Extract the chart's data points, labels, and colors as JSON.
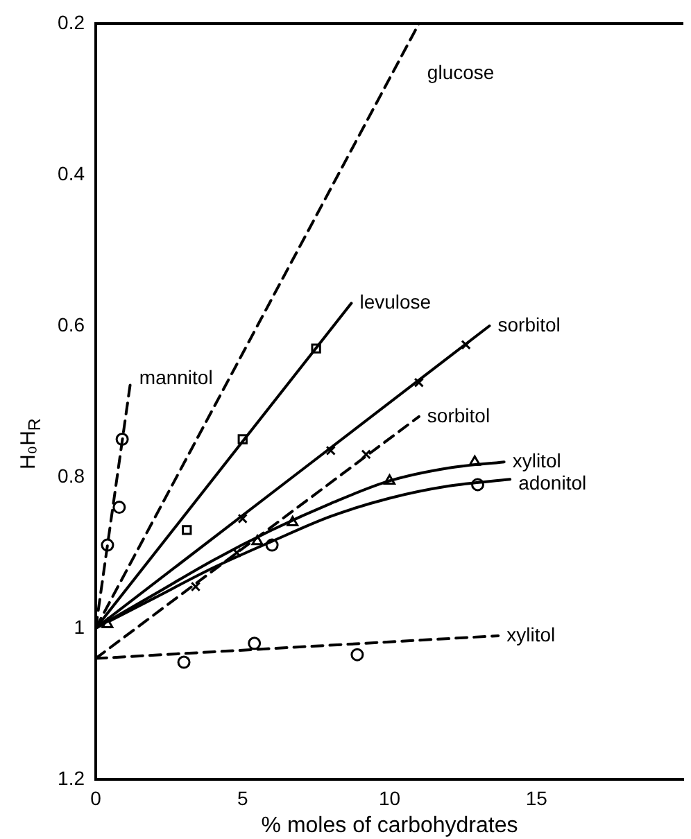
{
  "chart_data": {
    "type": "line",
    "xlabel": "% moles of carbohydrates",
    "ylabel": "H₀H$_{R}$",
    "xlim": [
      0,
      20
    ],
    "xticks": [
      0,
      5,
      10,
      15
    ],
    "ylim": [
      1.2,
      0.2
    ],
    "yticks": [
      0.2,
      0.4,
      0.6,
      0.8,
      1,
      1.2
    ],
    "grid": false,
    "legend": false,
    "series": [
      {
        "name": "glucose",
        "type": "line",
        "color": "#000000",
        "line_style": "dashed",
        "marker": "none",
        "x": [
          0,
          11
        ],
        "values": [
          1.0,
          0.2
        ]
      },
      {
        "name": "mannitol",
        "type": "line",
        "color": "#000000",
        "line_style": "dashed",
        "marker": "none",
        "x": [
          0,
          1.2
        ],
        "values": [
          1.0,
          0.67
        ]
      },
      {
        "type": "scatter",
        "color": "#000000",
        "marker": "circle",
        "x": [
          0.4,
          0.8,
          0.9
        ],
        "values": [
          0.89,
          0.84,
          0.75
        ]
      },
      {
        "name": "levulose",
        "type": "line",
        "color": "#000000",
        "line_style": "solid",
        "marker": "none",
        "x": [
          0,
          8.7
        ],
        "values": [
          1.0,
          0.57
        ]
      },
      {
        "type": "scatter",
        "color": "#000000",
        "marker": "square",
        "x": [
          3.1,
          5.0,
          7.5
        ],
        "values": [
          0.87,
          0.75,
          0.63
        ]
      },
      {
        "name": "sorbitol",
        "type": "line",
        "color": "#000000",
        "line_style": "solid",
        "marker": "none",
        "x": [
          0,
          13.4
        ],
        "values": [
          1.0,
          0.6
        ]
      },
      {
        "type": "scatter",
        "color": "#000000",
        "marker": "cross",
        "x": [
          5.0,
          8.0,
          11.0,
          12.6
        ],
        "values": [
          0.855,
          0.765,
          0.675,
          0.625
        ]
      },
      {
        "name": "sorbitol",
        "type": "line",
        "color": "#000000",
        "line_style": "dashed",
        "marker": "none",
        "x": [
          0,
          11
        ],
        "values": [
          1.04,
          0.72
        ]
      },
      {
        "type": "scatter",
        "color": "#000000",
        "marker": "cross",
        "x": [
          3.4,
          4.8,
          9.2
        ],
        "values": [
          0.945,
          0.9,
          0.77
        ]
      },
      {
        "name": "xylitol",
        "type": "line",
        "color": "#000000",
        "line_style": "solid",
        "marker": "none",
        "x": [
          0,
          2,
          4,
          6,
          8,
          10,
          12,
          13.9
        ],
        "values": [
          1.0,
          0.955,
          0.91,
          0.87,
          0.835,
          0.805,
          0.788,
          0.78
        ]
      },
      {
        "type": "scatter",
        "color": "#000000",
        "marker": "triangle",
        "x": [
          0.4,
          5.5,
          6.7,
          10,
          12.9
        ],
        "values": [
          0.995,
          0.885,
          0.86,
          0.805,
          0.78
        ]
      },
      {
        "name": "adonitol",
        "type": "line",
        "color": "#000000",
        "line_style": "solid",
        "marker": "none",
        "x": [
          0,
          2,
          4,
          6,
          8,
          10,
          12,
          14.1
        ],
        "values": [
          1.0,
          0.96,
          0.92,
          0.885,
          0.852,
          0.828,
          0.812,
          0.803
        ]
      },
      {
        "type": "scatter",
        "color": "#000000",
        "marker": "circle",
        "x": [
          6.0,
          13.0
        ],
        "values": [
          0.89,
          0.81
        ]
      },
      {
        "name": "xylitol",
        "type": "line",
        "color": "#000000",
        "line_style": "dashed",
        "marker": "none",
        "x": [
          0,
          13.7
        ],
        "values": [
          1.04,
          1.01
        ]
      },
      {
        "type": "scatter",
        "color": "#000000",
        "marker": "circle",
        "x": [
          3.0,
          5.4,
          8.9
        ],
        "values": [
          1.045,
          1.02,
          1.035
        ]
      }
    ]
  }
}
